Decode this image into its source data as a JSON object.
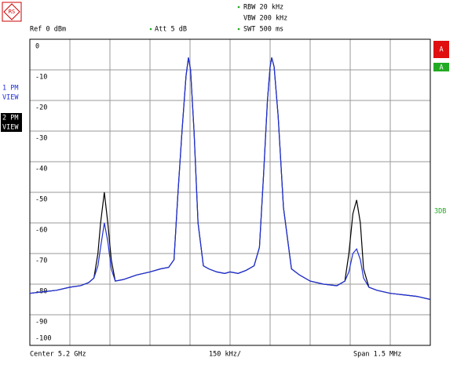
{
  "chart_data": {
    "type": "line",
    "header": {
      "ref": "Ref  0 dBm",
      "att": "Att  5 dB",
      "rbw": "RBW 20 kHz",
      "vbw": "VBW 200 kHz",
      "swt": "SWT 500 ms"
    },
    "trace_view": "VIEW",
    "side_marker_red": "A",
    "side_marker_green": "A",
    "side_label": "3DB",
    "footer": {
      "center": "Center  5.2 GHz",
      "per_div": "150 kHz/",
      "span": "Span  1.5 MHz"
    },
    "xlim": [
      -750,
      750
    ],
    "xticks": [
      -750,
      -600,
      -450,
      -300,
      -150,
      0,
      150,
      300,
      450,
      600,
      750
    ],
    "ylim": [
      -100,
      0
    ],
    "yticks": [
      0,
      -10,
      -20,
      -30,
      -40,
      -50,
      -60,
      -70,
      -80,
      -90,
      -100
    ],
    "grid": true,
    "x": [
      -750,
      -700,
      -650,
      -600,
      -560,
      -530,
      -510,
      -495,
      -485,
      -471,
      -458,
      -445,
      -430,
      -400,
      -350,
      -300,
      -260,
      -230,
      -210,
      -195,
      -180,
      -165,
      -156,
      -148,
      -135,
      -120,
      -100,
      -80,
      -50,
      -20,
      0,
      30,
      60,
      90,
      110,
      125,
      140,
      150,
      156,
      165,
      180,
      200,
      230,
      260,
      300,
      350,
      400,
      430,
      445,
      460,
      474,
      488,
      500,
      520,
      550,
      600,
      650,
      700,
      750
    ],
    "series": [
      {
        "name": "1 PM",
        "color": "#1f2fd8",
        "values": [
          -83,
          -82.5,
          -82,
          -81,
          -80.5,
          -79.5,
          -78,
          -74,
          -68,
          -60,
          -66,
          -75,
          -79,
          -78.5,
          -77,
          -76,
          -75,
          -74.5,
          -72,
          -50,
          -30,
          -12,
          -6,
          -10,
          -30,
          -60,
          -74,
          -75,
          -76,
          -76.5,
          -76,
          -76.5,
          -75.5,
          -74,
          -68,
          -45,
          -20,
          -9,
          -6,
          -9,
          -25,
          -55,
          -75,
          -77,
          -79,
          -80,
          -80.5,
          -79,
          -76,
          -70,
          -68.5,
          -72,
          -78,
          -81,
          -82,
          -83,
          -83.5,
          -84,
          -85
        ]
      },
      {
        "name": "2 PM",
        "color": "#000000",
        "values": [
          -83,
          -82.5,
          -82,
          -81,
          -80.5,
          -79.5,
          -78,
          -70,
          -60,
          -50,
          -60,
          -72,
          -79,
          -78.5,
          -77,
          -76,
          -75,
          -74.5,
          -72,
          -50,
          -30,
          -12,
          -6,
          -10,
          -30,
          -60,
          -74,
          -75,
          -76,
          -76.5,
          -76,
          -76.5,
          -75.5,
          -74,
          -68,
          -45,
          -20,
          -9,
          -6,
          -9,
          -25,
          -55,
          -75,
          -77,
          -79,
          -80,
          -80.5,
          -79,
          -70,
          -57,
          -52.5,
          -60,
          -75,
          -81,
          -82,
          -83,
          -83.5,
          -84,
          -85
        ]
      }
    ]
  }
}
